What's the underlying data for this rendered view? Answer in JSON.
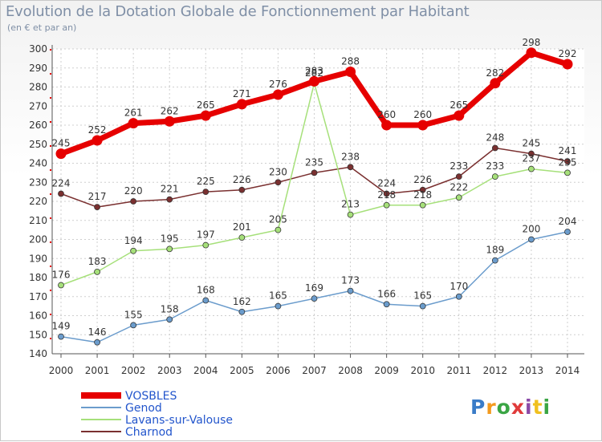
{
  "title": "Evolution de la Dotation Globale de Fonctionnement par Habitant",
  "subtitle": "(en € et par an)",
  "logo_text": "Proxiti",
  "chart_data": {
    "type": "line",
    "x": [
      2000,
      2001,
      2002,
      2003,
      2004,
      2005,
      2006,
      2007,
      2008,
      2009,
      2010,
      2011,
      2012,
      2013,
      2014
    ],
    "ylim": [
      140,
      300
    ],
    "yticks": [
      140,
      150,
      160,
      170,
      180,
      190,
      200,
      210,
      220,
      230,
      240,
      250,
      260,
      270,
      280,
      290,
      300
    ],
    "grid": true,
    "legend_position": "bottom-left",
    "series": [
      {
        "name": "VOSBLES",
        "color": "#e60000",
        "values": [
          245,
          252,
          261,
          262,
          265,
          271,
          276,
          283,
          288,
          260,
          260,
          265,
          282,
          298,
          292
        ]
      },
      {
        "name": "Genod",
        "color": "#6b9ccc",
        "values": [
          149,
          146,
          155,
          158,
          168,
          162,
          165,
          169,
          173,
          166,
          165,
          170,
          189,
          200,
          204
        ]
      },
      {
        "name": "Lavans-sur-Valouse",
        "color": "#a6e07a",
        "values": [
          176,
          183,
          194,
          195,
          197,
          201,
          205,
          282,
          213,
          218,
          218,
          222,
          233,
          237,
          235
        ]
      },
      {
        "name": "Charnod",
        "color": "#7a3030",
        "values": [
          224,
          217,
          220,
          221,
          225,
          226,
          230,
          235,
          238,
          224,
          226,
          233,
          248,
          245,
          241
        ]
      }
    ]
  }
}
